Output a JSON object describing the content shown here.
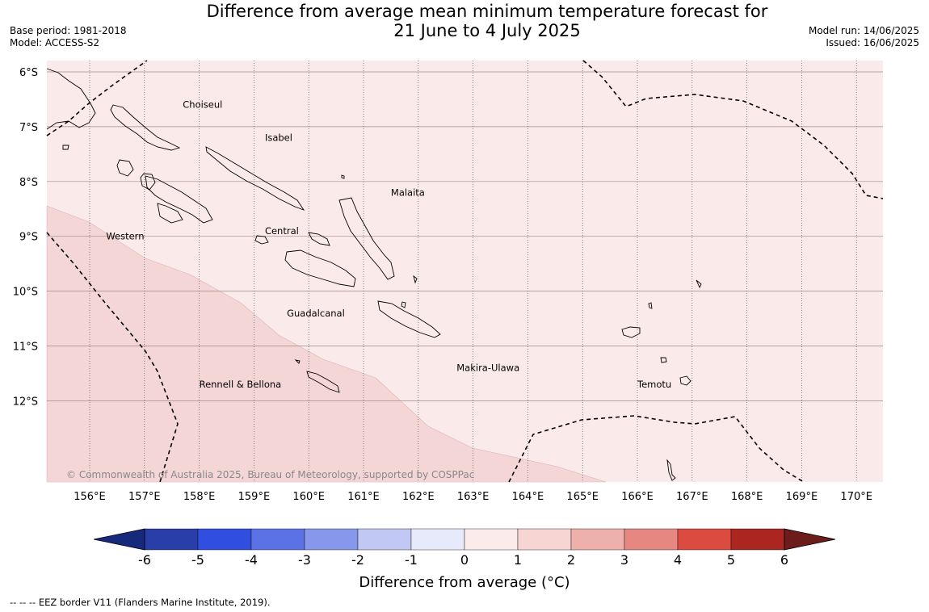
{
  "title_line1": "Difference from average mean minimum temperature forecast for",
  "title_line2": "21 June to 4 July 2025",
  "base_period": "Base period: 1981-2018",
  "model": "Model: ACCESS-S2",
  "model_run": "Model run: 14/06/2025",
  "issued": "Issued: 16/06/2025",
  "copyright": "© Commonwealth of Australia 2025, Bureau of Meteorology, supported by COSPPac",
  "footer_note": "--  --  -- EEZ border V11 (Flanders Marine Institute, 2019).",
  "map": {
    "lon_range": [
      155.2,
      170.5
    ],
    "lat_range": [
      -13.5,
      -5.8
    ],
    "lat_ticks": [
      {
        "value": -6,
        "label": "6°S"
      },
      {
        "value": -7,
        "label": "7°S"
      },
      {
        "value": -8,
        "label": "8°S"
      },
      {
        "value": -9,
        "label": "9°S"
      },
      {
        "value": -10,
        "label": "10°S"
      },
      {
        "value": -11,
        "label": "11°S"
      },
      {
        "value": -12,
        "label": "12°S"
      }
    ],
    "lon_ticks": [
      {
        "value": 156,
        "label": "156°E"
      },
      {
        "value": 157,
        "label": "157°E"
      },
      {
        "value": 158,
        "label": "158°E"
      },
      {
        "value": 159,
        "label": "159°E"
      },
      {
        "value": 160,
        "label": "160°E"
      },
      {
        "value": 161,
        "label": "161°E"
      },
      {
        "value": 162,
        "label": "162°E"
      },
      {
        "value": 163,
        "label": "163°E"
      },
      {
        "value": 164,
        "label": "164°E"
      },
      {
        "value": 165,
        "label": "165°E"
      },
      {
        "value": 166,
        "label": "166°E"
      },
      {
        "value": 167,
        "label": "167°E"
      },
      {
        "value": 168,
        "label": "168°E"
      },
      {
        "value": 169,
        "label": "169°E"
      },
      {
        "value": 170,
        "label": "170°E"
      }
    ],
    "regions": [
      {
        "name": "Choiseul",
        "lon": 157.7,
        "lat": -6.6
      },
      {
        "name": "Isabel",
        "lon": 159.2,
        "lat": -7.2
      },
      {
        "name": "Malaita",
        "lon": 161.5,
        "lat": -8.2
      },
      {
        "name": "Western",
        "lon": 156.3,
        "lat": -9.0
      },
      {
        "name": "Central",
        "lon": 159.2,
        "lat": -8.9
      },
      {
        "name": "Guadalcanal",
        "lon": 159.6,
        "lat": -10.4
      },
      {
        "name": "Rennell & Bellona",
        "lon": 158.0,
        "lat": -11.7
      },
      {
        "name": "Makira-Ulawa",
        "lon": 162.7,
        "lat": -11.4
      },
      {
        "name": "Temotu",
        "lon": 166.0,
        "lat": -11.7
      }
    ],
    "shading": [
      {
        "category": "0 to 1",
        "color": "#fbeaea"
      },
      {
        "category": "1 to 2",
        "color": "#f5d6d6"
      }
    ]
  },
  "colorbar": {
    "title": "Difference from average (°C)",
    "ticks": [
      "-6",
      "-5",
      "-4",
      "-3",
      "-2",
      "-1",
      "0",
      "1",
      "2",
      "3",
      "4",
      "5",
      "6"
    ],
    "colors": [
      "#2a3ea9",
      "#304fe0",
      "#5a72e6",
      "#8797ec",
      "#c2c8f4",
      "#e7eafb",
      "#fcebeb",
      "#f6d5d3",
      "#eeb0ab",
      "#e68881",
      "#dc4b40",
      "#ab2621"
    ],
    "under_color": "#17297a",
    "over_color": "#6c1d1b"
  }
}
